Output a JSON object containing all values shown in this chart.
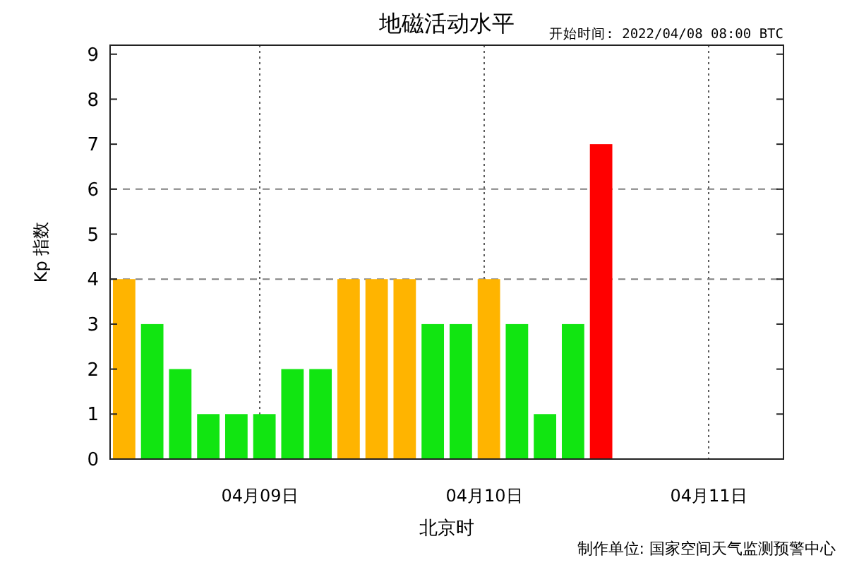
{
  "chart_data": {
    "type": "bar",
    "title": "地磁活动水平",
    "subtitle": "开始时间: 2022/04/08  08:00 BTC",
    "xlabel": "北京时",
    "ylabel": "Kp 指数",
    "annotations": [
      "制作单位: 国家空间天气监测预警中心"
    ],
    "x": [
      "2022-04-08T09:30",
      "2022-04-08T12:30",
      "2022-04-08T15:30",
      "2022-04-08T18:30",
      "2022-04-08T21:30",
      "2022-04-09T00:30",
      "2022-04-09T03:30",
      "2022-04-09T06:30",
      "2022-04-09T09:30",
      "2022-04-09T12:30",
      "2022-04-09T15:30",
      "2022-04-09T18:30",
      "2022-04-09T21:30",
      "2022-04-10T00:30",
      "2022-04-10T03:30",
      "2022-04-10T06:30",
      "2022-04-10T09:30",
      "2022-04-10T12:30"
    ],
    "values": [
      4,
      3,
      2,
      1,
      1,
      1,
      2,
      2,
      4,
      4,
      4,
      3,
      3,
      4,
      3,
      1,
      3,
      7
    ],
    "colors": [
      "#ffb400",
      "#11e511",
      "#11e511",
      "#11e511",
      "#11e511",
      "#11e511",
      "#11e511",
      "#11e511",
      "#ffb400",
      "#ffb400",
      "#ffb400",
      "#11e511",
      "#11e511",
      "#ffb400",
      "#11e511",
      "#11e511",
      "#11e511",
      "#ff0000"
    ],
    "xlim": [
      "2022-04-08T08:00",
      "2022-04-11T08:00"
    ],
    "xticks": [
      {
        "value": "2022-04-09T00:00",
        "label": "04月09日"
      },
      {
        "value": "2022-04-10T00:00",
        "label": "04月10日"
      },
      {
        "value": "2022-04-11T00:00",
        "label": "04月11日"
      }
    ],
    "ylim": [
      0,
      9.2
    ],
    "yticks": [
      0,
      1,
      2,
      3,
      4,
      5,
      6,
      7,
      8,
      9
    ],
    "ref_lines": [
      {
        "axis": "y",
        "value": 4,
        "color": "#808080",
        "line_style": "dashed"
      },
      {
        "axis": "y",
        "value": 6,
        "color": "#808080",
        "line_style": "dashed"
      }
    ],
    "grid": "x",
    "line_style": "dotted"
  }
}
